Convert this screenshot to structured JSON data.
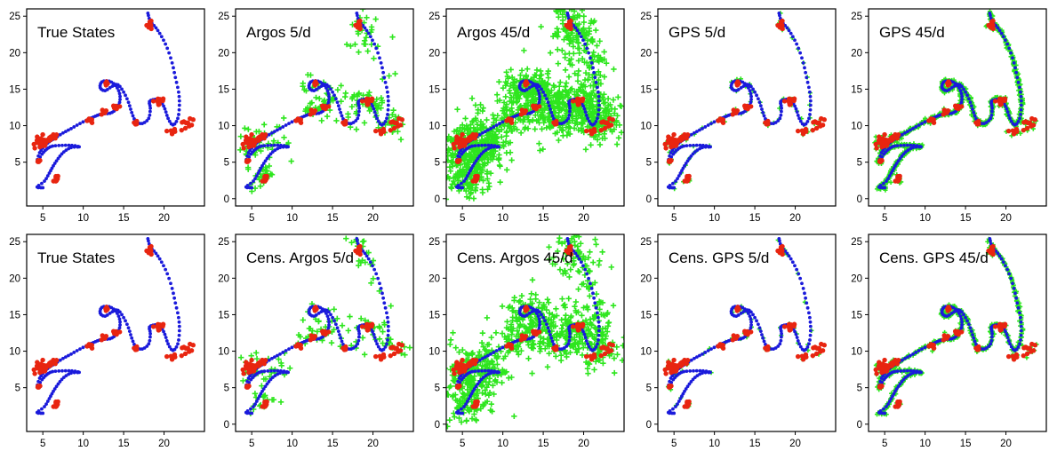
{
  "figure": {
    "colors": {
      "track": "#1a1adb",
      "state_points": "#e82510",
      "observations": "#2ee61e",
      "frame": "#000000",
      "background": "#ffffff"
    }
  },
  "chart_data": [
    {
      "type": "scatter",
      "title": "True States",
      "observations": "none",
      "xlim": [
        3,
        25
      ],
      "ylim": [
        -1,
        26
      ],
      "xticks": [
        5,
        10,
        15,
        20
      ],
      "yticks": [
        5,
        10,
        15,
        20,
        25
      ],
      "grid": false
    },
    {
      "type": "scatter",
      "title": "Argos 5/d",
      "observations": "argos-sparse",
      "xlim": [
        3,
        25
      ],
      "ylim": [
        -1,
        26
      ],
      "xticks": [
        5,
        10,
        15,
        20
      ],
      "yticks": [
        0,
        5,
        10,
        15,
        20,
        25
      ],
      "grid": false
    },
    {
      "type": "scatter",
      "title": "Argos 45/d",
      "observations": "argos-dense",
      "xlim": [
        3,
        25
      ],
      "ylim": [
        -1,
        26
      ],
      "xticks": [
        5,
        10,
        15,
        20
      ],
      "yticks": [
        0,
        5,
        10,
        15,
        20,
        25
      ],
      "grid": false
    },
    {
      "type": "scatter",
      "title": "GPS 5/d",
      "observations": "gps-sparse",
      "xlim": [
        3,
        25
      ],
      "ylim": [
        -1,
        26
      ],
      "xticks": [
        5,
        10,
        15,
        20
      ],
      "yticks": [
        0,
        5,
        10,
        15,
        20,
        25
      ],
      "grid": false
    },
    {
      "type": "scatter",
      "title": "GPS 45/d",
      "observations": "gps-dense",
      "xlim": [
        3,
        25
      ],
      "ylim": [
        -1,
        26
      ],
      "xticks": [
        5,
        10,
        15,
        20
      ],
      "yticks": [
        0,
        5,
        10,
        15,
        20,
        25
      ],
      "grid": false
    },
    {
      "type": "scatter",
      "title": "True States",
      "observations": "none",
      "xlim": [
        3,
        25
      ],
      "ylim": [
        -1,
        26
      ],
      "xticks": [
        5,
        10,
        15,
        20
      ],
      "yticks": [
        5,
        10,
        15,
        20,
        25
      ],
      "grid": false
    },
    {
      "type": "scatter",
      "title": "Cens. Argos 5/d",
      "observations": "argos-sparse-censored",
      "xlim": [
        3,
        25
      ],
      "ylim": [
        -1,
        26
      ],
      "xticks": [
        5,
        10,
        15,
        20
      ],
      "yticks": [
        0,
        5,
        10,
        15,
        20,
        25
      ],
      "grid": false
    },
    {
      "type": "scatter",
      "title": "Cens. Argos 45/d",
      "observations": "argos-dense-censored",
      "xlim": [
        3,
        25
      ],
      "ylim": [
        -1,
        26
      ],
      "xticks": [
        5,
        10,
        15,
        20
      ],
      "yticks": [
        0,
        5,
        10,
        15,
        20,
        25
      ],
      "grid": false
    },
    {
      "type": "scatter",
      "title": "Cens. GPS 5/d",
      "observations": "gps-sparse-censored",
      "xlim": [
        3,
        25
      ],
      "ylim": [
        -1,
        26
      ],
      "xticks": [
        5,
        10,
        15,
        20
      ],
      "yticks": [
        0,
        5,
        10,
        15,
        20,
        25
      ],
      "grid": false
    },
    {
      "type": "scatter",
      "title": "Cens. GPS 45/d",
      "observations": "gps-dense-censored",
      "xlim": [
        3,
        25
      ],
      "ylim": [
        -1,
        26
      ],
      "xticks": [
        5,
        10,
        15,
        20
      ],
      "yticks": [
        0,
        5,
        10,
        15,
        20,
        25
      ],
      "grid": false
    }
  ],
  "track": {
    "waypoints": [
      [
        5.0,
        1.5
      ],
      [
        4.3,
        1.6
      ],
      [
        5.2,
        2.4
      ],
      [
        5.8,
        3.5
      ],
      [
        6.3,
        4.5
      ],
      [
        6.9,
        5.5
      ],
      [
        7.6,
        6.4
      ],
      [
        8.5,
        7.0
      ],
      [
        9.5,
        7.1
      ],
      [
        8.6,
        7.3
      ],
      [
        7.4,
        7.3
      ],
      [
        6.2,
        7.2
      ],
      [
        5.5,
        6.8
      ],
      [
        4.9,
        6.1
      ],
      [
        4.3,
        5.1
      ],
      [
        4.6,
        6.3
      ],
      [
        5.2,
        7.2
      ],
      [
        5.8,
        7.8
      ],
      [
        6.5,
        8.3
      ],
      [
        7.5,
        9.0
      ],
      [
        8.5,
        9.6
      ],
      [
        9.6,
        10.3
      ],
      [
        10.7,
        10.9
      ],
      [
        11.5,
        11.3
      ],
      [
        12.3,
        11.6
      ],
      [
        13.3,
        11.7
      ],
      [
        14.0,
        12.2
      ],
      [
        14.5,
        13.2
      ],
      [
        14.5,
        14.4
      ],
      [
        14.0,
        15.5
      ],
      [
        13.2,
        16.1
      ],
      [
        12.3,
        16.0
      ],
      [
        12.1,
        15.2
      ],
      [
        12.7,
        14.8
      ],
      [
        13.6,
        15.4
      ],
      [
        14.3,
        15.6
      ],
      [
        15.0,
        14.6
      ],
      [
        15.6,
        13.2
      ],
      [
        16.0,
        11.8
      ],
      [
        16.5,
        10.6
      ],
      [
        17.3,
        10.3
      ],
      [
        18.1,
        11.0
      ],
      [
        18.3,
        12.4
      ],
      [
        18.2,
        13.3
      ],
      [
        18.9,
        13.6
      ],
      [
        19.6,
        13.3
      ],
      [
        20.1,
        12.3
      ],
      [
        20.5,
        11.0
      ],
      [
        21.1,
        10.1
      ],
      [
        21.7,
        11.0
      ],
      [
        21.9,
        12.8
      ],
      [
        21.8,
        14.6
      ],
      [
        21.4,
        16.6
      ],
      [
        21.0,
        18.6
      ],
      [
        20.4,
        20.6
      ],
      [
        19.7,
        22.2
      ],
      [
        19.0,
        23.4
      ],
      [
        18.3,
        24.3
      ],
      [
        18.0,
        25.4
      ]
    ],
    "state_clusters": [
      {
        "center": [
          4.7,
          7.7
        ],
        "spread": [
          1.1,
          0.8
        ],
        "count": 26
      },
      {
        "center": [
          6.3,
          8.4
        ],
        "spread": [
          0.6,
          0.5
        ],
        "count": 8
      },
      {
        "center": [
          4.5,
          5.2
        ],
        "spread": [
          0.3,
          0.3
        ],
        "count": 4
      },
      {
        "center": [
          6.6,
          2.6
        ],
        "spread": [
          0.6,
          0.5
        ],
        "count": 7
      },
      {
        "center": [
          10.8,
          10.9
        ],
        "spread": [
          0.4,
          0.4
        ],
        "count": 6
      },
      {
        "center": [
          12.6,
          12.0
        ],
        "spread": [
          0.3,
          0.3
        ],
        "count": 5
      },
      {
        "center": [
          14.0,
          12.6
        ],
        "spread": [
          0.4,
          0.4
        ],
        "count": 6
      },
      {
        "center": [
          12.8,
          15.8
        ],
        "spread": [
          0.4,
          0.3
        ],
        "count": 5
      },
      {
        "center": [
          16.6,
          10.4
        ],
        "spread": [
          0.4,
          0.4
        ],
        "count": 6
      },
      {
        "center": [
          18.3,
          24.0
        ],
        "spread": [
          0.4,
          0.5
        ],
        "count": 10
      },
      {
        "center": [
          19.3,
          13.4
        ],
        "spread": [
          0.8,
          0.4
        ],
        "count": 10
      },
      {
        "center": [
          21.4,
          9.2
        ],
        "spread": [
          0.8,
          0.5
        ],
        "count": 9
      },
      {
        "center": [
          23.0,
          10.3
        ],
        "spread": [
          0.7,
          0.6
        ],
        "count": 10
      }
    ],
    "argos_hotspots": [
      {
        "center": [
          5.5,
          8.0
        ],
        "spread": [
          1.8,
          1.8
        ]
      },
      {
        "center": [
          6.4,
          3.2
        ],
        "spread": [
          1.4,
          1.4
        ]
      },
      {
        "center": [
          13.5,
          13.0
        ],
        "spread": [
          2.5,
          2.0
        ]
      },
      {
        "center": [
          18.8,
          23.0
        ],
        "spread": [
          1.4,
          2.4
        ]
      },
      {
        "center": [
          19.3,
          13.2
        ],
        "spread": [
          1.6,
          1.3
        ]
      },
      {
        "center": [
          22.2,
          10.2
        ],
        "spread": [
          1.7,
          1.5
        ]
      }
    ]
  }
}
